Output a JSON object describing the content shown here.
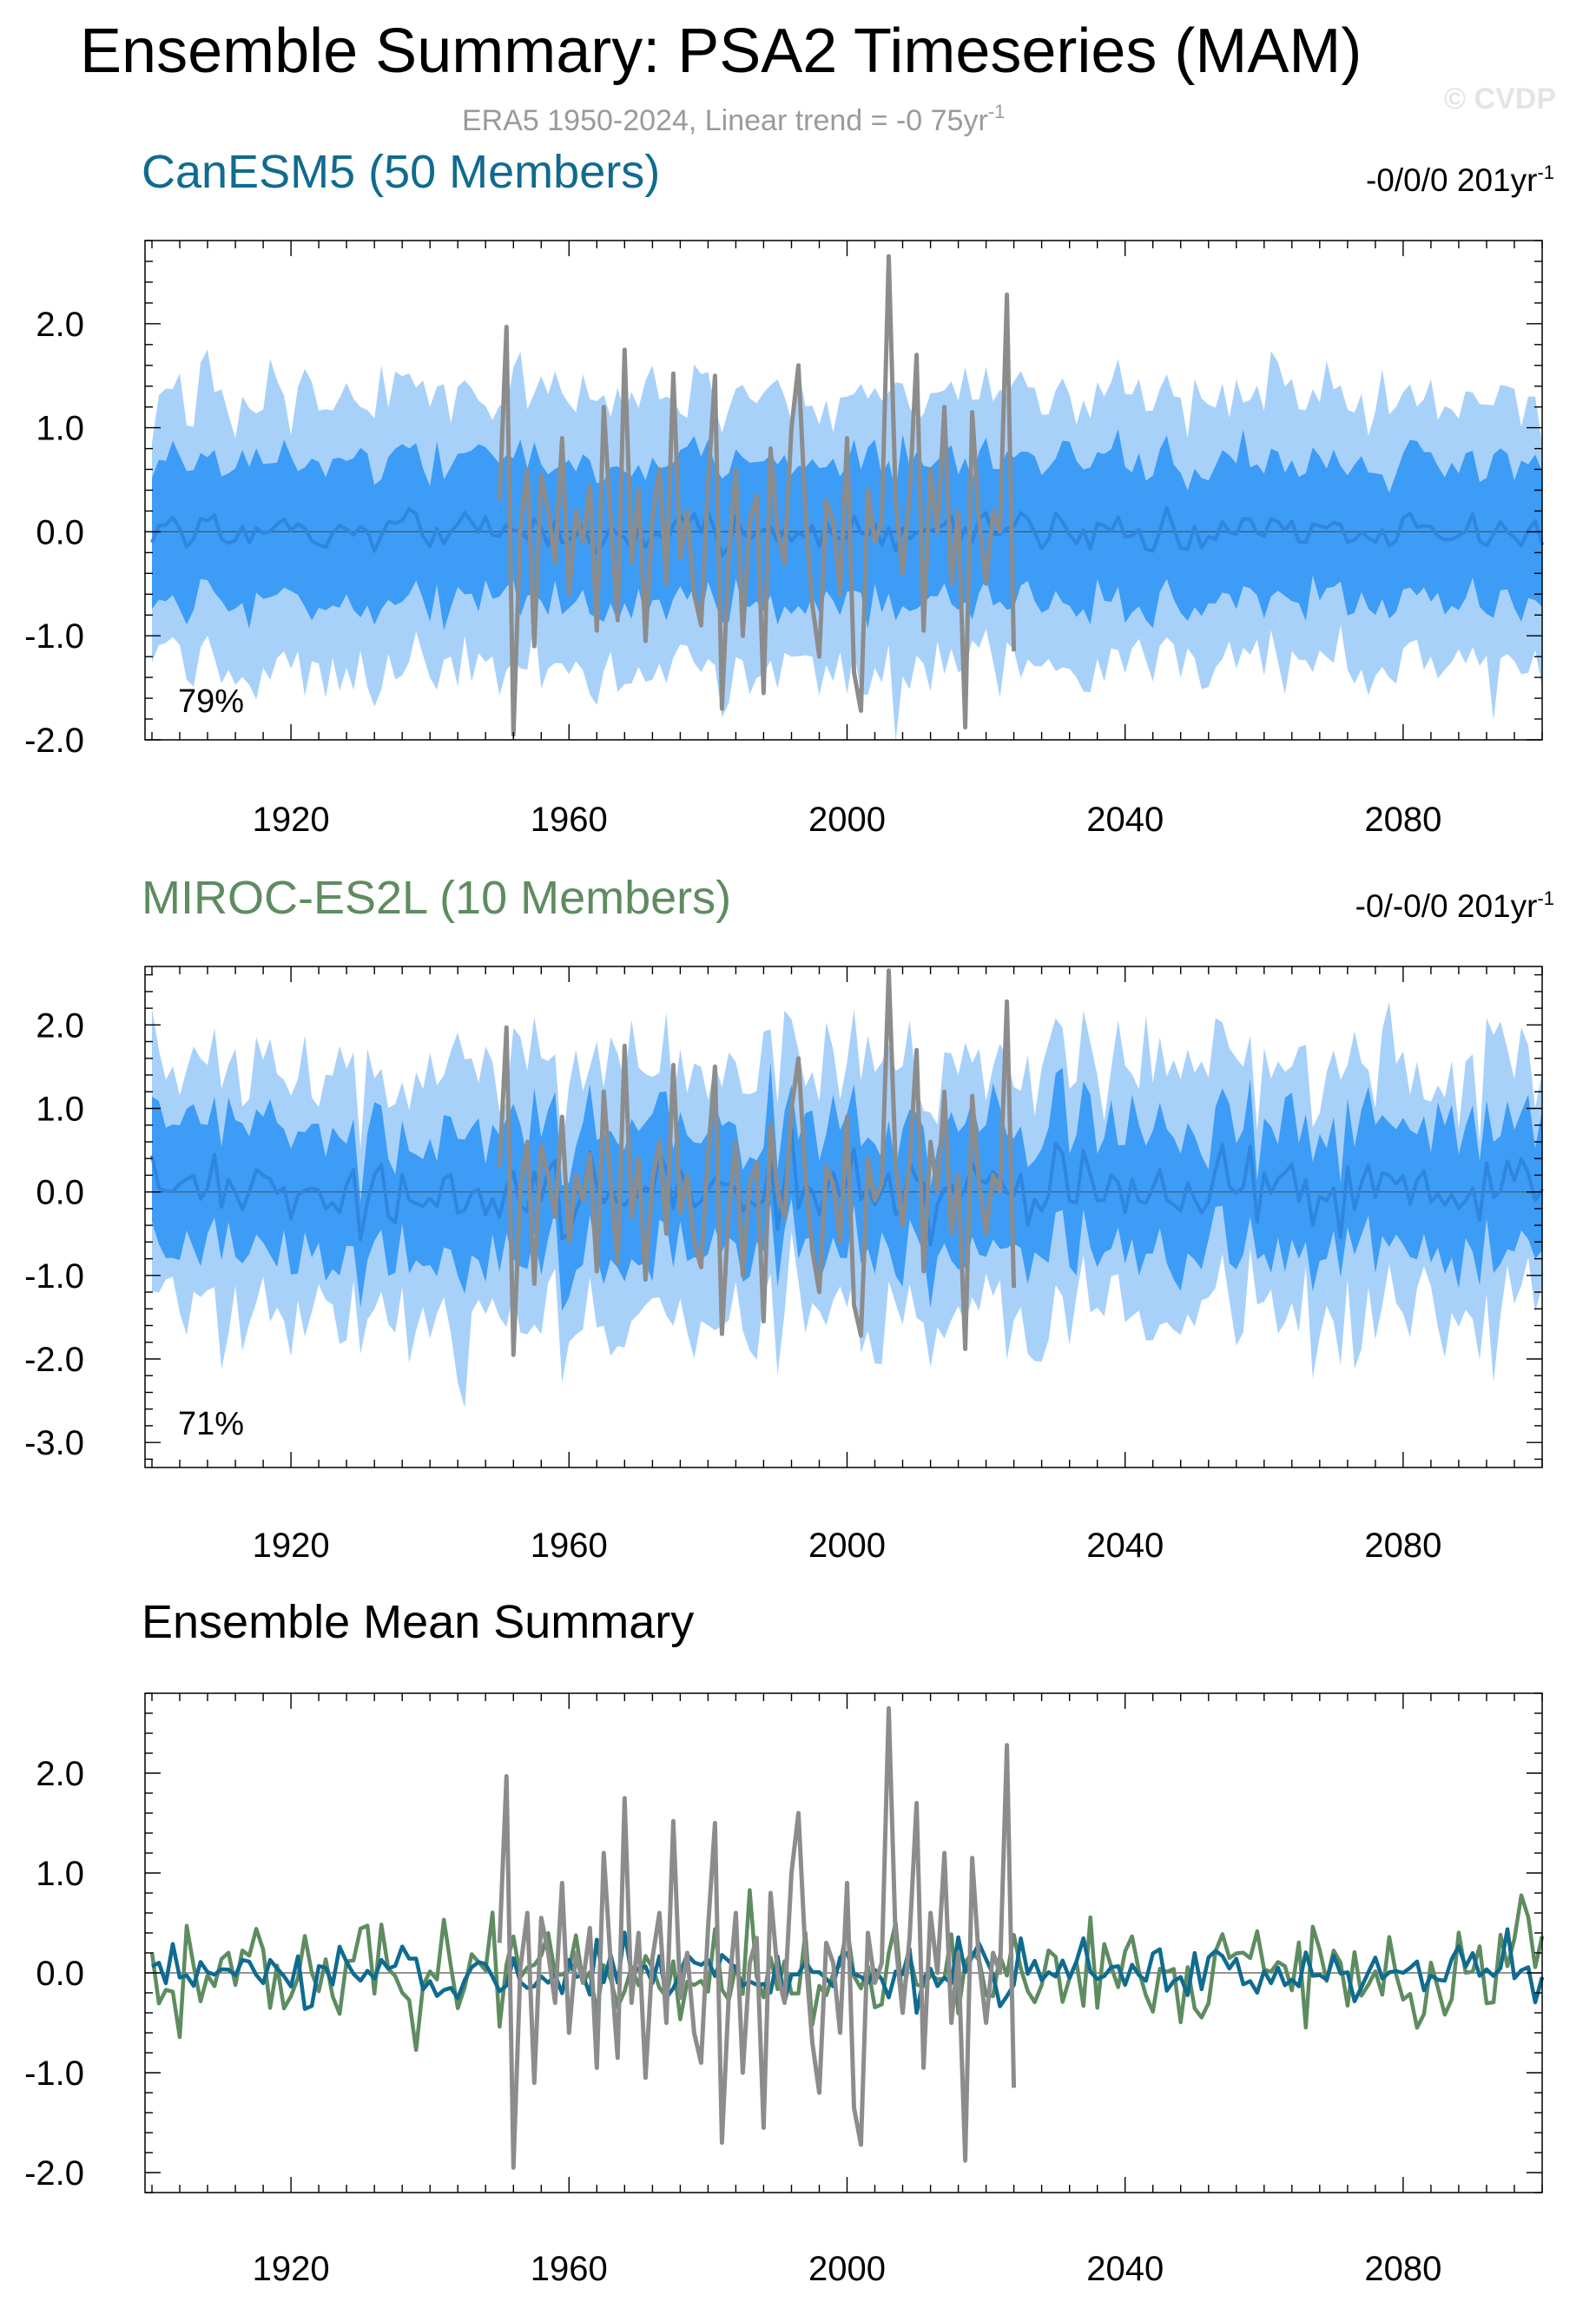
{
  "header": {
    "title": "Ensemble Summary: PSA2 Timeseries (MAM)",
    "subtitle": "ERA5 1950-2024, Linear trend = -0 75yr",
    "subtitle_sup": "-1",
    "watermark": "© CVDP"
  },
  "colors": {
    "band_outer": "#a8d1fa",
    "band_inner": "#3d9cf5",
    "ens_mean": "#2f86e0",
    "obs": "#8c8c8c",
    "canesm5": "#0f6b8f",
    "miroc": "#5e8c60"
  },
  "chart_data": [
    {
      "type": "area",
      "title": "CanESM5 (50 Members)",
      "trend_label": "-0/0/0 201yr",
      "trend_sup": "-1",
      "percent_label": "79%",
      "x_range": [
        1900,
        2100
      ],
      "xlim": [
        1899,
        2100
      ],
      "ylim": [
        -2.0,
        2.8
      ],
      "xticks": [
        "1920",
        "1960",
        "2000",
        "2040",
        "2080"
      ],
      "yticks": [
        "2.0",
        "1.0",
        "0.0",
        "-1.0",
        "-2.0"
      ],
      "series": [
        {
          "values": {
            "seed": 11,
            "mean_amp": 0.09,
            "inner": 0.68,
            "inner_var": 0.12,
            "outer": 1.3,
            "outer_var": 0.22
          }
        }
      ]
    },
    {
      "type": "area",
      "title": "MIROC-ES2L (10 Members)",
      "trend_label": "-0/-0/0 201yr",
      "trend_sup": "-1",
      "percent_label": "71%",
      "x_range": [
        1900,
        2100
      ],
      "xlim": [
        1899,
        2100
      ],
      "ylim": [
        -3.3,
        2.7
      ],
      "xticks": [
        "1920",
        "1960",
        "2000",
        "2040",
        "2080"
      ],
      "yticks": [
        "2.0",
        "1.0",
        "0.0",
        "-1.0",
        "-2.0",
        "-3.0"
      ],
      "series": [
        {
          "values": {
            "seed": 23,
            "mean_amp": 0.22,
            "inner": 0.75,
            "inner_var": 0.22,
            "outer": 1.45,
            "outer_var": 0.4
          }
        }
      ]
    },
    {
      "type": "line",
      "title": "Ensemble Mean Summary",
      "xlim": [
        1899,
        2100
      ],
      "ylim": [
        -2.2,
        2.8
      ],
      "xticks": [
        "1920",
        "1960",
        "2000",
        "2040",
        "2080"
      ],
      "yticks": [
        "2.0",
        "1.0",
        "0.0",
        "-1.0",
        "-2.0"
      ],
      "series": [
        {
          "values": {
            "seed": 31,
            "amp": 0.14
          }
        },
        {
          "values": {
            "seed": 47,
            "amp": 0.26
          }
        },
        {
          "x_start": 1950,
          "values": [
            0.3,
            1.97,
            -1.95,
            0.05,
            0.6,
            -1.1,
            0.55,
            0.2,
            -0.3,
            0.9,
            -0.6,
            0.2,
            -0.1,
            0.45,
            -0.95,
            1.2,
            0.1,
            -0.85,
            1.75,
            -0.3,
            0.4,
            -1.05,
            0.15,
            0.6,
            -0.5,
            1.52,
            -0.25,
            0.2,
            -0.6,
            -0.9,
            0.45,
            1.5,
            -1.7,
            -0.2,
            0.6,
            -1.0,
            0.1,
            0.35,
            -1.55,
            0.8,
            0.0,
            -0.3,
            1.0,
            1.6,
            0.2,
            -0.7,
            -1.2,
            0.3,
            0.1,
            -0.6,
            0.9,
            -1.35,
            -1.72,
            0.4,
            -0.1,
            0.1,
            2.65,
            0.3,
            -0.4,
            0.35,
            1.7,
            -0.95,
            0.6,
            0.0,
            1.2,
            -0.5,
            0.2,
            -1.88,
            1.15,
            0.1,
            -0.5,
            0.2,
            0.0,
            2.28,
            -1.15
          ]
        }
      ]
    }
  ]
}
